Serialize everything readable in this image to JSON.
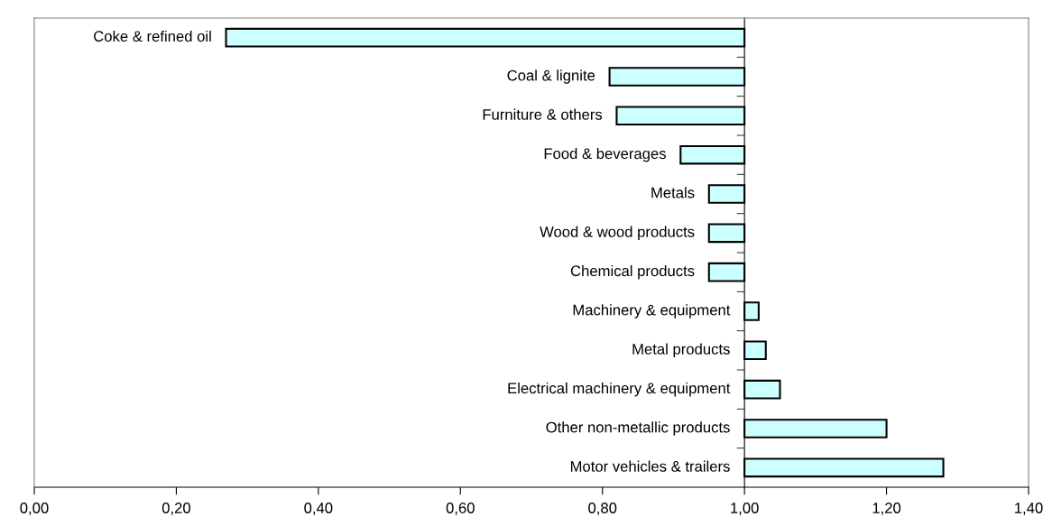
{
  "chart_data": {
    "type": "bar",
    "orientation": "horizontal",
    "categories": [
      "Coke & refined oil",
      "Coal & lignite",
      "Furniture & others",
      "Food & beverages",
      "Metals",
      "Wood & wood products",
      "Chemical products",
      "Machinery & equipment",
      "Metal products",
      "Electrical machinery & equipment",
      "Other non-metallic products",
      "Motor vehicles & trailers"
    ],
    "base": [
      1,
      1,
      1,
      1,
      1,
      1,
      1,
      1,
      1,
      1,
      1,
      1
    ],
    "values": [
      -0.73,
      -0.19,
      -0.18,
      -0.09,
      -0.05,
      -0.05,
      -0.05,
      0.02,
      0.03,
      0.05,
      0.2,
      0.28
    ],
    "color": "#ccffff",
    "xlim": [
      0,
      1.4
    ],
    "xticks": [
      {
        "value": 0,
        "label": "0,00"
      },
      {
        "value": 0.2,
        "label": "0,20"
      },
      {
        "value": 0.4,
        "label": "0,40"
      },
      {
        "value": 0.6,
        "label": "0,60"
      },
      {
        "value": 0.8,
        "label": "0,80"
      },
      {
        "value": 1.0,
        "label": "1,00"
      },
      {
        "value": 1.2,
        "label": "1,20"
      },
      {
        "value": 1.4,
        "label": "1,40"
      }
    ],
    "tick_labels": "x",
    "grid": false,
    "legend": false
  }
}
